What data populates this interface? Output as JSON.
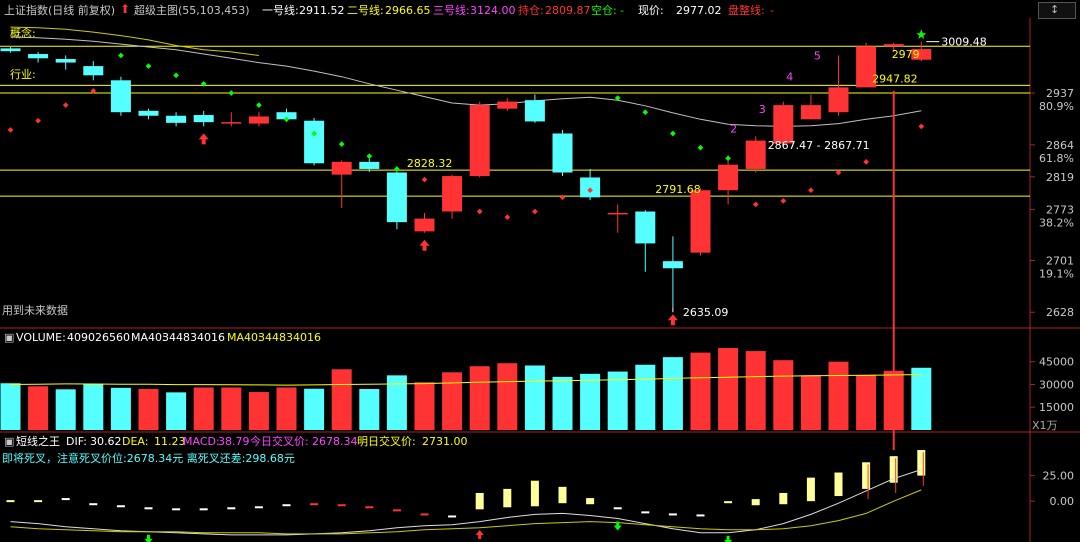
{
  "main_header": {
    "index_name": "上证指数(日线 前复权)",
    "indicator": "超级主图(55,103,453)",
    "line1_label": "一号线:",
    "line1_value": "2911.52",
    "line2_label": "二号线:",
    "line2_value": "2966.65",
    "line3_label": "三号线:",
    "line3_value": "3124.00",
    "hold_label": "持仓:",
    "hold_value": "2809.87",
    "empty_label": "空仓:",
    "empty_value": "-",
    "price_label": "现价:",
    "price_value": "2977.02",
    "consol_label": "盘整线:",
    "consol_value": "-"
  },
  "side_labels": {
    "concept": "概念:",
    "industry": "行业:",
    "future_data": "用到未来数据"
  },
  "volume_header": {
    "volume_label": "VOLUME:",
    "volume_value": "409026560",
    "ma40_label": "MA40:",
    "ma40_value": "344834016",
    "ma40b_label": "MA40:",
    "ma40b_value": "344834016"
  },
  "macd_header": {
    "name": "短线之王",
    "dif_label": "DIF:",
    "dif_value": "30.62",
    "dea_label": "DEA:",
    "dea_value": "11.23",
    "macd_label": "MACD:",
    "macd_value": "38.79",
    "today_cross_label": "今日交叉价:",
    "today_cross_value": "2678.34",
    "tomorrow_cross_label": "明日交叉价:",
    "tomorrow_cross_value": "2731.00",
    "warn_line": "即将死叉，注意死叉价位:2678.34元  离死叉还差:298.68元"
  },
  "annotations": {
    "high": "3009.48",
    "low": "2635.09",
    "range": "2867.47 - 2867.71",
    "lvl_2828": "2828.32",
    "lvl_2791": "2791.68",
    "lvl_2947": "2947.82",
    "lvl_2979": "2979",
    "wave2": "2",
    "wave3": "3",
    "wave4": "4",
    "wave5": "5"
  },
  "volume_unit": "X1万",
  "colors": {
    "up": "#ff3333",
    "down": "#55ffff",
    "yellow": "#ffff00",
    "white": "#c0c0c0",
    "magenta": "#ff44ff"
  },
  "chart_data": [
    {
      "type": "candlestick",
      "title": "上证指数(日线 前复权)",
      "y_ticks": [
        {
          "value": "2937",
          "pct": "80.9%"
        },
        {
          "value": "2864",
          "pct": "61.8%"
        },
        {
          "value": "2819",
          "pct": ""
        },
        {
          "value": "2773",
          "pct": "38.2%"
        },
        {
          "value": "2701",
          "pct": "19.1%"
        },
        {
          "value": "2628",
          "pct": ""
        }
      ],
      "ylim": [
        2610,
        3040
      ],
      "horizontal_levels": [
        3003,
        2947.82,
        2828.32,
        2791.68
      ],
      "candles": [
        [
          3000,
          2996,
          3002,
          2994
        ],
        [
          2992,
          2986,
          2995,
          2980
        ],
        [
          2985,
          2980,
          2990,
          2970
        ],
        [
          2975,
          2962,
          2982,
          2955
        ],
        [
          2955,
          2910,
          2960,
          2905
        ],
        [
          2912,
          2905,
          2915,
          2900
        ],
        [
          2905,
          2895,
          2910,
          2890
        ],
        [
          2906,
          2896,
          2912,
          2890
        ],
        [
          2895,
          2896,
          2910,
          2890
        ],
        [
          2894,
          2904,
          2910,
          2890
        ],
        [
          2910,
          2900,
          2915,
          2896
        ],
        [
          2898,
          2838,
          2902,
          2835
        ],
        [
          2822,
          2840,
          2842,
          2775
        ],
        [
          2840,
          2830,
          2845,
          2826
        ],
        [
          2825,
          2755,
          2830,
          2745
        ],
        [
          2742,
          2760,
          2768,
          2740
        ],
        [
          2770,
          2820,
          2822,
          2760
        ],
        [
          2820,
          2920,
          2925,
          2818
        ],
        [
          2915,
          2925,
          2930,
          2912
        ],
        [
          2927,
          2897,
          2935,
          2895
        ],
        [
          2880,
          2825,
          2885,
          2820
        ],
        [
          2818,
          2790,
          2830,
          2786
        ],
        [
          2768,
          2768,
          2780,
          2740
        ],
        [
          2770,
          2725,
          2772,
          2685
        ],
        [
          2700,
          2690,
          2735,
          2635
        ],
        [
          2712,
          2800,
          2803,
          2708
        ],
        [
          2800,
          2836,
          2850,
          2780
        ],
        [
          2830,
          2870,
          2876,
          2825
        ],
        [
          2866,
          2920,
          2925,
          2862
        ],
        [
          2900,
          2920,
          2935,
          2900
        ],
        [
          2910,
          2945,
          2990,
          2905
        ],
        [
          2945,
          3003,
          3008,
          2945
        ],
        [
          3003,
          3006,
          3008,
          2995
        ],
        [
          2984,
          2999,
          3009.48,
          2982
        ]
      ],
      "ma_white": [
        3016,
        3015,
        3013,
        3010,
        3006,
        3002,
        2998,
        2992,
        2986,
        2980,
        2975,
        2968,
        2960,
        2950,
        2941,
        2932,
        2923,
        2920,
        2922,
        2926,
        2929,
        2931,
        2927,
        2919,
        2909,
        2900,
        2893,
        2891,
        2890,
        2891,
        2894,
        2900,
        2905,
        2912
      ],
      "ma_yellow": [
        3030,
        3029,
        3027,
        3023,
        3018,
        3012,
        3004,
        2998,
        2995,
        2990
      ],
      "dots": [
        {
          "i": 0,
          "v": 2885,
          "c": "#ff3333"
        },
        {
          "i": 1,
          "v": 2898,
          "c": "#ff3333"
        },
        {
          "i": 2,
          "v": 2920,
          "c": "#ff3333"
        },
        {
          "i": 3,
          "v": 2940,
          "c": "#ff3333"
        },
        {
          "i": 4,
          "v": 2990,
          "c": "#00ff00"
        },
        {
          "i": 5,
          "v": 2975,
          "c": "#00ff00"
        },
        {
          "i": 6,
          "v": 2962,
          "c": "#00ff00"
        },
        {
          "i": 7,
          "v": 2950,
          "c": "#00ff00"
        },
        {
          "i": 8,
          "v": 2937,
          "c": "#00ff00"
        },
        {
          "i": 9,
          "v": 2920,
          "c": "#00ff00"
        },
        {
          "i": 10,
          "v": 2900,
          "c": "#00ff00"
        },
        {
          "i": 11,
          "v": 2880,
          "c": "#00ff00"
        },
        {
          "i": 12,
          "v": 2865,
          "c": "#00ff00"
        },
        {
          "i": 13,
          "v": 2848,
          "c": "#00ff00"
        },
        {
          "i": 14,
          "v": 2830,
          "c": "#00ff00"
        },
        {
          "i": 15,
          "v": 2815,
          "c": "#ff3333"
        },
        {
          "i": 16,
          "v": 2810,
          "c": "#ff3333"
        },
        {
          "i": 17,
          "v": 2770,
          "c": "#ff3333"
        },
        {
          "i": 18,
          "v": 2762,
          "c": "#ff3333"
        },
        {
          "i": 19,
          "v": 2770,
          "c": "#ff3333"
        },
        {
          "i": 20,
          "v": 2790,
          "c": "#ff3333"
        },
        {
          "i": 21,
          "v": 2800,
          "c": "#ff3333"
        },
        {
          "i": 22,
          "v": 2930,
          "c": "#00ff00"
        },
        {
          "i": 23,
          "v": 2910,
          "c": "#00ff00"
        },
        {
          "i": 24,
          "v": 2880,
          "c": "#00ff00"
        },
        {
          "i": 25,
          "v": 2860,
          "c": "#00ff00"
        },
        {
          "i": 26,
          "v": 2845,
          "c": "#00ff00"
        },
        {
          "i": 27,
          "v": 2780,
          "c": "#ff3333"
        },
        {
          "i": 28,
          "v": 2785,
          "c": "#ff3333"
        },
        {
          "i": 29,
          "v": 2800,
          "c": "#ff3333"
        },
        {
          "i": 30,
          "v": 2825,
          "c": "#ff3333"
        },
        {
          "i": 31,
          "v": 2840,
          "c": "#ff3333"
        },
        {
          "i": 33,
          "v": 2890,
          "c": "#ff3333"
        }
      ],
      "up_arrows": [
        7,
        15,
        24
      ],
      "buy_star": 33
    },
    {
      "type": "bar",
      "title": "VOLUME",
      "y_ticks": [
        "45000",
        "30000",
        "15000"
      ],
      "ylim": [
        0,
        56000
      ],
      "values": [
        30800,
        28800,
        26800,
        30500,
        27800,
        27000,
        24800,
        28000,
        28000,
        25000,
        28000,
        27200,
        40000,
        27000,
        36000,
        31500,
        38000,
        42000,
        44000,
        42500,
        35000,
        37000,
        38500,
        43000,
        48000,
        51000,
        54000,
        52000,
        46000,
        36000,
        45000,
        36000,
        39000,
        41000
      ],
      "up": [
        false,
        true,
        false,
        false,
        false,
        true,
        false,
        true,
        true,
        true,
        true,
        false,
        true,
        false,
        false,
        true,
        true,
        true,
        true,
        false,
        false,
        false,
        false,
        false,
        false,
        true,
        true,
        true,
        true,
        true,
        true,
        true,
        true,
        false
      ],
      "ma40": [
        30000,
        30200,
        30400,
        30300,
        30200,
        30100,
        29900,
        29900,
        29800,
        29700,
        29600,
        29700,
        30000,
        30100,
        30400,
        30600,
        31000,
        31400,
        31900,
        32200,
        32500,
        32800,
        33100,
        33500,
        34000,
        34400,
        34800,
        35200,
        35500,
        35700,
        35900,
        36100,
        36300,
        36500
      ]
    },
    {
      "type": "bar",
      "title": "短线之王",
      "y_ticks": [
        "25.00",
        "0.00"
      ],
      "ylim": [
        -38,
        52
      ],
      "bars": [
        [
          0,
          1
        ],
        [
          0,
          1
        ],
        [
          3,
          1
        ],
        [
          -2,
          -2
        ],
        [
          -4,
          -4
        ],
        [
          -6,
          -6
        ],
        [
          -7,
          -7
        ],
        [
          -7,
          -7
        ],
        [
          -6,
          -6
        ],
        [
          -5,
          -5
        ],
        [
          -3,
          -3
        ],
        [
          -2,
          -2
        ],
        [
          -3,
          -3
        ],
        [
          -5,
          -5
        ],
        [
          -8,
          -8
        ],
        [
          -12,
          -12
        ],
        [
          -14,
          -14
        ],
        [
          -8,
          8
        ],
        [
          -6,
          12
        ],
        [
          -5,
          20
        ],
        [
          -2,
          14
        ],
        [
          -3,
          3
        ],
        [
          -6,
          -6
        ],
        [
          -10,
          -10
        ],
        [
          -12,
          -12
        ],
        [
          -13,
          -13
        ],
        [
          -2,
          0
        ],
        [
          -4,
          2
        ],
        [
          -3,
          8
        ],
        [
          0,
          23
        ],
        [
          5,
          28
        ],
        [
          12,
          38
        ],
        [
          18,
          44
        ],
        [
          25,
          50
        ]
      ],
      "dif": [
        -20,
        -22,
        -25,
        -27,
        -29,
        -30,
        -31,
        -32,
        -33,
        -33,
        -33,
        -32,
        -31,
        -29,
        -26,
        -24,
        -23,
        -20,
        -16,
        -13,
        -12,
        -14,
        -17,
        -22,
        -27,
        -31,
        -31,
        -28,
        -22,
        -13,
        -2,
        10,
        22,
        31
      ],
      "dea": [
        -25,
        -27,
        -28,
        -29,
        -30,
        -30,
        -30,
        -31,
        -31,
        -31,
        -32,
        -32,
        -32,
        -31,
        -30,
        -28,
        -27,
        -26,
        -24,
        -22,
        -21,
        -20,
        -21,
        -23,
        -25,
        -27,
        -28,
        -28,
        -27,
        -24,
        -19,
        -12,
        0,
        11
      ],
      "down_arrows": [
        5,
        22,
        26
      ],
      "up_arrows": [
        17
      ]
    }
  ]
}
